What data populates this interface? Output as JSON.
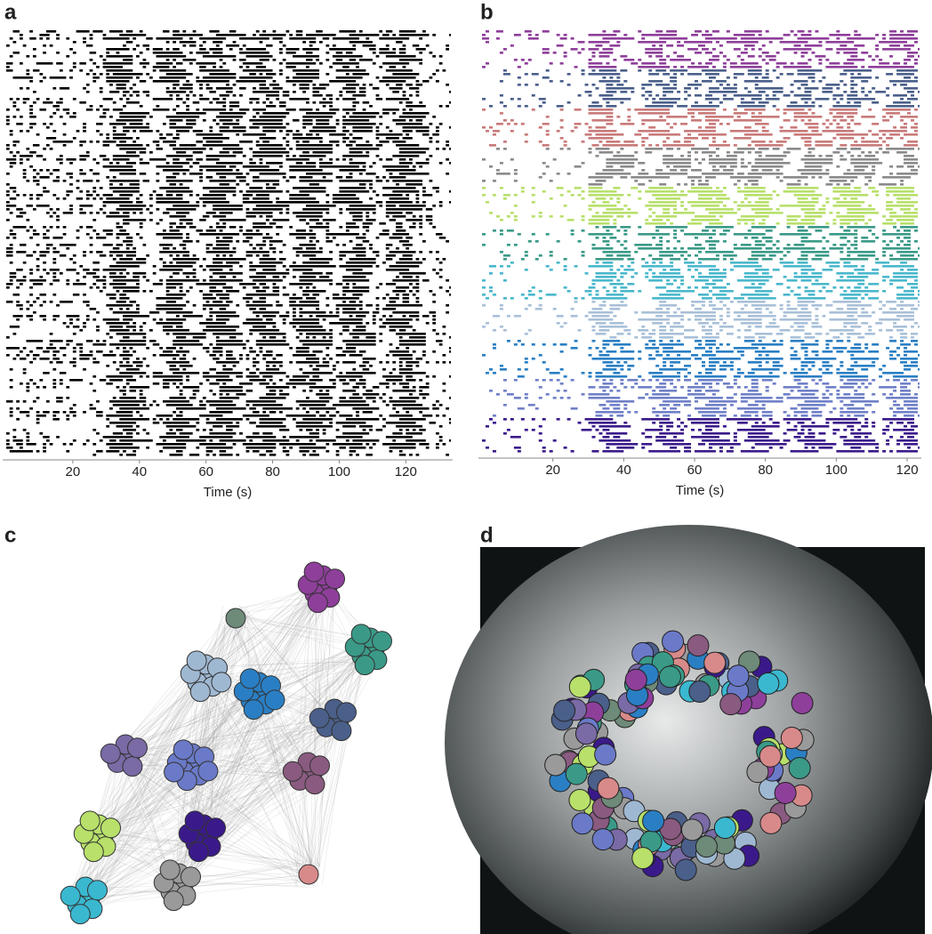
{
  "chart_data": [
    {
      "type": "raster",
      "label": "a",
      "xlabel": "Time (s)",
      "xlim": [
        0,
        133
      ],
      "xticks": [
        20,
        40,
        60,
        80,
        100,
        120
      ],
      "color": "#000000"
    },
    {
      "type": "raster",
      "label": "b",
      "xlabel": "Time (s)",
      "xlim": [
        0,
        123
      ],
      "xticks": [
        20,
        40,
        60,
        80,
        100,
        120
      ],
      "colors": [
        "#8e3f9a",
        "#4a5f8a",
        "#c97a7a",
        "#8a8a8a",
        "#b8e06a",
        "#3a9a87",
        "#4ab8cc",
        "#a9c0d8",
        "#2a7fc4",
        "#7080c8",
        "#3a1a8a"
      ]
    }
  ],
  "diagrams": [
    {
      "label": "c"
    },
    {
      "label": "d"
    }
  ]
}
